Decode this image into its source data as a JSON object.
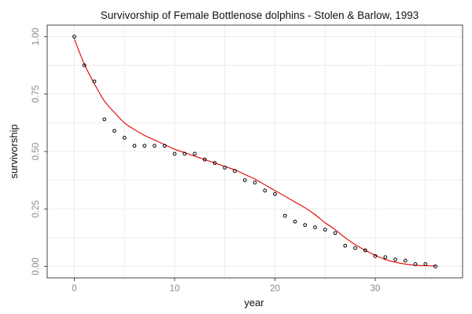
{
  "chart_data": {
    "type": "scatter",
    "title": "Survivorship of Female Bottlenose dolphins - Stolen & Barlow, 1993",
    "xlabel": "year",
    "ylabel": "survivorship",
    "xlim": [
      -2.7,
      38.7
    ],
    "ylim": [
      -0.05,
      1.05
    ],
    "x_ticks": [
      0,
      10,
      20,
      30
    ],
    "x_tick_labels": [
      "0",
      "10",
      "20",
      "30"
    ],
    "y_ticks": [
      0.0,
      0.25,
      0.5,
      0.75,
      1.0
    ],
    "y_tick_labels": [
      "0.00",
      "0.25",
      "0.50",
      "0.75",
      "1.00"
    ],
    "grid": true,
    "points": [
      {
        "x": 0,
        "y": 1.0
      },
      {
        "x": 1,
        "y": 0.875
      },
      {
        "x": 2,
        "y": 0.805
      },
      {
        "x": 3,
        "y": 0.64
      },
      {
        "x": 4,
        "y": 0.59
      },
      {
        "x": 5,
        "y": 0.56
      },
      {
        "x": 6,
        "y": 0.525
      },
      {
        "x": 7,
        "y": 0.525
      },
      {
        "x": 8,
        "y": 0.525
      },
      {
        "x": 9,
        "y": 0.525
      },
      {
        "x": 10,
        "y": 0.49
      },
      {
        "x": 11,
        "y": 0.49
      },
      {
        "x": 12,
        "y": 0.49
      },
      {
        "x": 13,
        "y": 0.465
      },
      {
        "x": 14,
        "y": 0.45
      },
      {
        "x": 15,
        "y": 0.43
      },
      {
        "x": 16,
        "y": 0.415
      },
      {
        "x": 17,
        "y": 0.375
      },
      {
        "x": 18,
        "y": 0.365
      },
      {
        "x": 19,
        "y": 0.33
      },
      {
        "x": 20,
        "y": 0.315
      },
      {
        "x": 21,
        "y": 0.22
      },
      {
        "x": 22,
        "y": 0.195
      },
      {
        "x": 23,
        "y": 0.18
      },
      {
        "x": 24,
        "y": 0.17
      },
      {
        "x": 25,
        "y": 0.16
      },
      {
        "x": 26,
        "y": 0.145
      },
      {
        "x": 27,
        "y": 0.09
      },
      {
        "x": 28,
        "y": 0.08
      },
      {
        "x": 29,
        "y": 0.07
      },
      {
        "x": 30,
        "y": 0.045
      },
      {
        "x": 31,
        "y": 0.04
      },
      {
        "x": 32,
        "y": 0.03
      },
      {
        "x": 33,
        "y": 0.025
      },
      {
        "x": 34,
        "y": 0.01
      },
      {
        "x": 35,
        "y": 0.01
      },
      {
        "x": 36,
        "y": 0.0
      }
    ],
    "fit_line": {
      "color": "#e00000",
      "x": [
        0,
        1,
        2,
        3,
        4,
        5,
        6,
        7,
        8,
        9,
        10,
        11,
        12,
        13,
        14,
        15,
        16,
        17,
        18,
        19,
        20,
        21,
        22,
        23,
        24,
        25,
        26,
        27,
        28,
        29,
        30,
        31,
        32,
        33,
        34,
        35,
        36
      ],
      "y": [
        0.99,
        0.88,
        0.795,
        0.72,
        0.67,
        0.625,
        0.595,
        0.57,
        0.55,
        0.53,
        0.51,
        0.495,
        0.48,
        0.465,
        0.45,
        0.435,
        0.42,
        0.4,
        0.38,
        0.355,
        0.33,
        0.305,
        0.28,
        0.255,
        0.225,
        0.19,
        0.16,
        0.125,
        0.095,
        0.07,
        0.048,
        0.03,
        0.018,
        0.01,
        0.005,
        0.003,
        0.002
      ]
    }
  }
}
